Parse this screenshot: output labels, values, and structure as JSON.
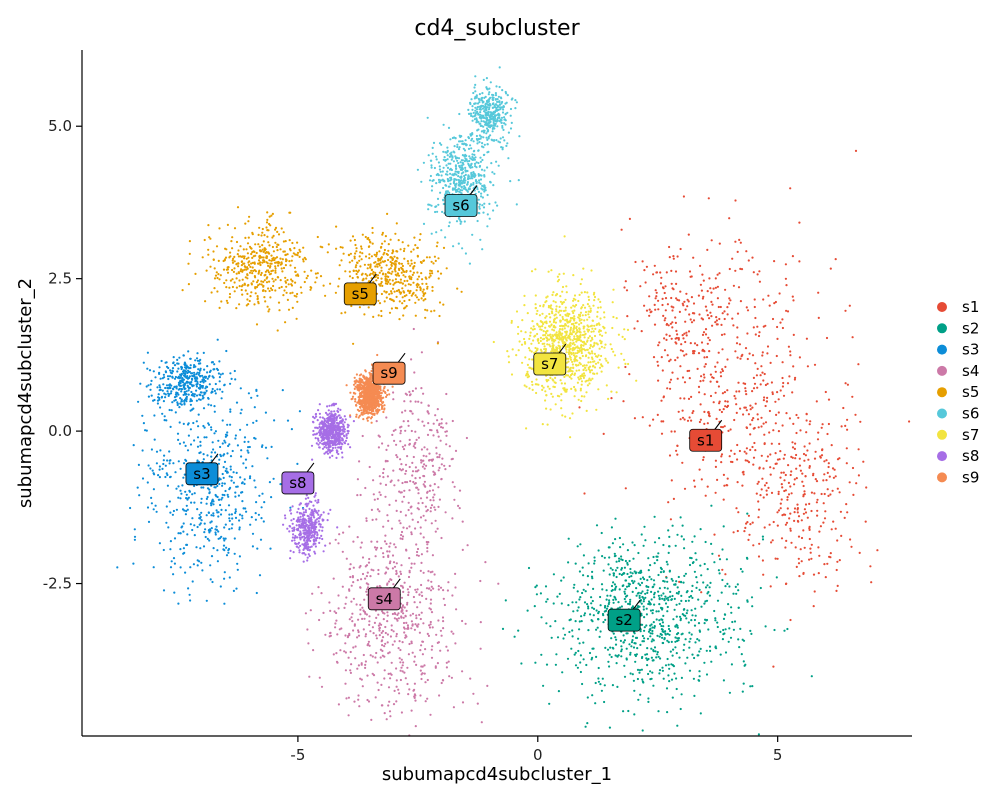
{
  "chart_data": {
    "type": "scatter",
    "title": "cd4_subcluster",
    "xlabel": "subumapcd4subcluster_1",
    "ylabel": "subumapcd4subcluster_2",
    "xlim": [
      -9.5,
      7.8
    ],
    "ylim": [
      -5.0,
      6.25
    ],
    "x_ticks": [
      -5,
      0,
      5
    ],
    "x_tick_labels": [
      "-5",
      "0",
      "5"
    ],
    "y_ticks": [
      -2.5,
      0.0,
      2.5,
      5.0
    ],
    "y_tick_labels": [
      "-2.5",
      "0.0",
      "2.5",
      "5.0"
    ],
    "grid": false,
    "legend": "right",
    "series": [
      {
        "name": "s1",
        "color": "#E64B35",
        "label_x": 3.5,
        "label_y": -0.15,
        "blobs": [
          [
            4.3,
            0.5,
            1.8,
            2.2,
            0.55
          ],
          [
            5.5,
            -1.2,
            1.3,
            1.3,
            0.25
          ],
          [
            3.0,
            2.0,
            1.0,
            1.0,
            0.2
          ]
        ]
      },
      {
        "name": "s2",
        "color": "#00A087",
        "label_x": 1.8,
        "label_y": -3.1,
        "blobs": [
          [
            2.3,
            -3.0,
            1.8,
            1.2,
            1.0
          ]
        ]
      },
      {
        "name": "s3",
        "color": "#0C8DD8",
        "label_x": -7.0,
        "label_y": -0.7,
        "blobs": [
          [
            -6.8,
            -0.9,
            1.2,
            1.5,
            0.6
          ],
          [
            -7.3,
            0.8,
            0.6,
            0.4,
            0.4
          ]
        ]
      },
      {
        "name": "s4",
        "color": "#CC79A7",
        "label_x": -3.2,
        "label_y": -2.75,
        "blobs": [
          [
            -3.0,
            -3.0,
            1.3,
            1.5,
            0.7
          ],
          [
            -2.5,
            -0.5,
            0.8,
            1.2,
            0.3
          ]
        ]
      },
      {
        "name": "s5",
        "color": "#E69F00",
        "label_x": -3.7,
        "label_y": 2.25,
        "blobs": [
          [
            -3.2,
            2.6,
            1.0,
            0.6,
            0.5
          ],
          [
            -5.8,
            2.7,
            1.0,
            0.6,
            0.5
          ]
        ]
      },
      {
        "name": "s6",
        "color": "#56C8DA",
        "label_x": -1.6,
        "label_y": 3.7,
        "blobs": [
          [
            -1.6,
            4.1,
            0.6,
            0.7,
            0.6
          ],
          [
            -1.0,
            5.2,
            0.4,
            0.4,
            0.4
          ]
        ]
      },
      {
        "name": "s7",
        "color": "#F2E440",
        "label_x": 0.25,
        "label_y": 1.1,
        "blobs": [
          [
            0.6,
            1.4,
            0.8,
            0.8,
            1.0
          ]
        ]
      },
      {
        "name": "s8",
        "color": "#A66EE6",
        "label_x": -5.0,
        "label_y": -0.85,
        "blobs": [
          [
            -4.3,
            0.0,
            0.3,
            0.3,
            0.6
          ],
          [
            -4.8,
            -1.6,
            0.3,
            0.4,
            0.4
          ]
        ]
      },
      {
        "name": "s9",
        "color": "#F58B52",
        "label_x": -3.1,
        "label_y": 0.95,
        "blobs": [
          [
            -3.5,
            0.6,
            0.25,
            0.3,
            1.0
          ]
        ]
      }
    ]
  }
}
